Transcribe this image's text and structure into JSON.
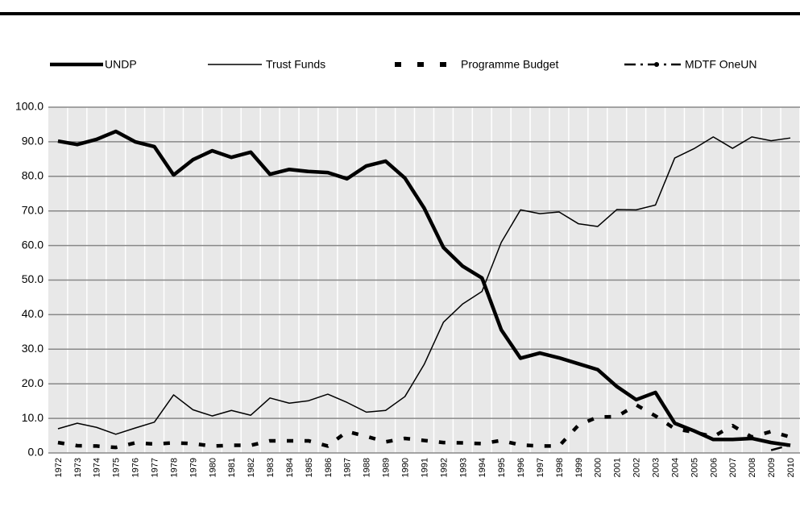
{
  "chart_data": {
    "type": "line",
    "categories": [
      "1972",
      "1973",
      "1974",
      "1975",
      "1976",
      "1977",
      "1978",
      "1979",
      "1980",
      "1981",
      "1982",
      "1983",
      "1984",
      "1985",
      "1986",
      "1987",
      "1988",
      "1989",
      "1990",
      "1991",
      "1992",
      "1993",
      "1994",
      "1995",
      "1996",
      "1997",
      "1998",
      "1999",
      "2000",
      "2001",
      "2002",
      "2003",
      "2004",
      "2005",
      "2006",
      "2007",
      "2008",
      "2009",
      "2010"
    ],
    "series": [
      {
        "name": "UNDP",
        "color": "#000000",
        "style": "thick",
        "values": [
          90.2,
          89.2,
          90.7,
          93,
          90,
          88.6,
          80.4,
          84.8,
          87.4,
          85.5,
          87,
          80.6,
          82,
          81.4,
          81.1,
          79.3,
          83,
          84.4,
          79.5,
          70.8,
          59.4,
          54,
          50.6,
          35.6,
          27.4,
          28.9,
          27.5,
          25.8,
          24.1,
          19.2,
          15.4,
          17.5,
          8.6,
          6.4,
          3.9,
          3.9,
          4.2,
          3,
          2.2
        ]
      },
      {
        "name": "Trust Funds",
        "color": "#000000",
        "style": "thin",
        "values": [
          7,
          8.6,
          7.4,
          5.4,
          7.2,
          8.9,
          16.8,
          12.5,
          10.7,
          12.3,
          10.9,
          15.9,
          14.4,
          15.1,
          17,
          14.6,
          11.8,
          12.3,
          16.3,
          25.6,
          37.8,
          43.1,
          46.7,
          60.9,
          70.3,
          69.2,
          69.7,
          66.3,
          65.5,
          70.4,
          70.3,
          71.7,
          85.3,
          88,
          91.4,
          88.1,
          91.4,
          90.3,
          91.1
        ]
      },
      {
        "name": "Programme Budget",
        "color": "#000000",
        "style": "dashed",
        "values": [
          3,
          2.1,
          2,
          1.6,
          2.9,
          2.6,
          2.9,
          2.7,
          2,
          2.2,
          2.2,
          3.5,
          3.5,
          3.5,
          2,
          6.2,
          4.8,
          3.2,
          4.2,
          3.6,
          3,
          2.9,
          2.7,
          3.6,
          2.3,
          2,
          2,
          8,
          10.4,
          10.5,
          13.9,
          10.7,
          7,
          6,
          4.7,
          7.9,
          4.6,
          6.2,
          4.6
        ]
      },
      {
        "name": "MDTF OneUN",
        "color": "#000000",
        "style": "dashdot",
        "values": [
          null,
          null,
          null,
          null,
          null,
          null,
          null,
          null,
          null,
          null,
          null,
          null,
          null,
          null,
          null,
          null,
          null,
          null,
          null,
          null,
          null,
          null,
          null,
          null,
          null,
          null,
          null,
          null,
          null,
          null,
          null,
          null,
          null,
          null,
          null,
          null,
          null,
          0.8,
          2.3
        ]
      }
    ],
    "ylim": [
      0,
      100
    ],
    "yticks": [
      {
        "value": 0,
        "label": "0.0"
      },
      {
        "value": 10,
        "label": "10.0"
      },
      {
        "value": 20,
        "label": "20.0"
      },
      {
        "value": 30,
        "label": "30.0"
      },
      {
        "value": 40,
        "label": "40.0"
      },
      {
        "value": 50,
        "label": "50.0"
      },
      {
        "value": 60,
        "label": "60.0"
      },
      {
        "value": 70,
        "label": "70.0"
      },
      {
        "value": 80,
        "label": "80.0"
      },
      {
        "value": 90,
        "label": "90.0"
      },
      {
        "value": 100,
        "label": "100.0"
      }
    ],
    "grid": true
  }
}
